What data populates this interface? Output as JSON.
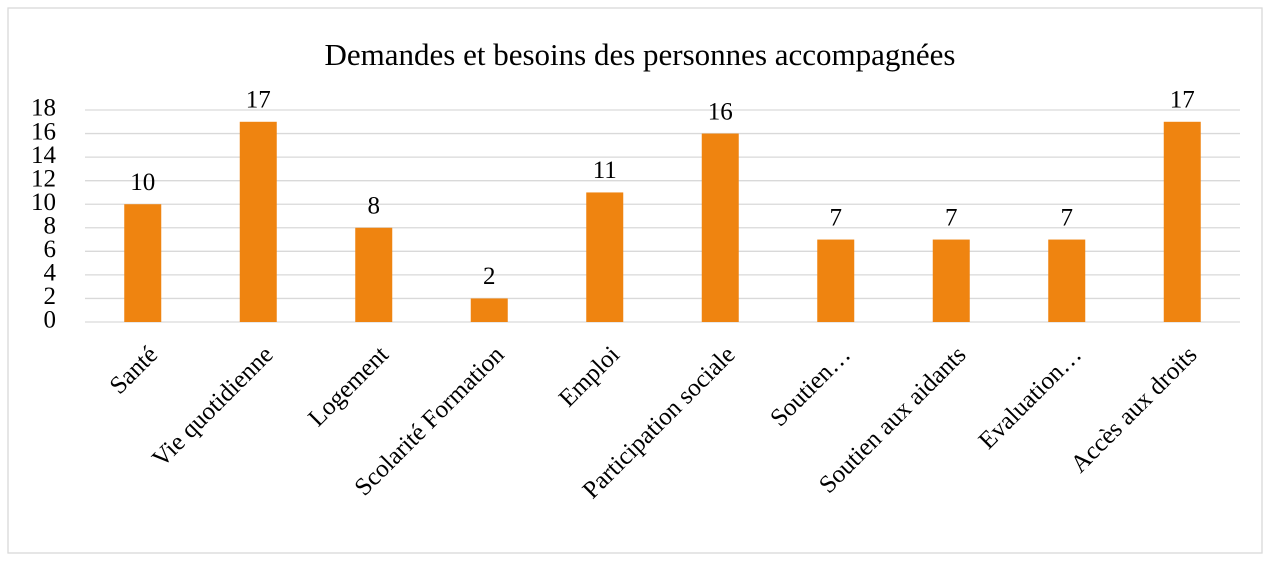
{
  "chart_data": {
    "type": "bar",
    "title": "Demandes et besoins des personnes accompagnées",
    "categories": [
      "Santé",
      "Vie quotidienne",
      "Logement",
      "Scolarité Formation",
      "Emploi",
      "Participation sociale",
      "Soutien…",
      "Soutien aux aidants",
      "Evaluation…",
      "Accès aux droits"
    ],
    "values": [
      10,
      17,
      8,
      2,
      11,
      16,
      7,
      7,
      7,
      17
    ],
    "color": "#ef8410",
    "ylim": [
      0,
      18
    ],
    "yticks": [
      0,
      2,
      4,
      6,
      8,
      10,
      12,
      14,
      16,
      18
    ],
    "grid": true
  }
}
